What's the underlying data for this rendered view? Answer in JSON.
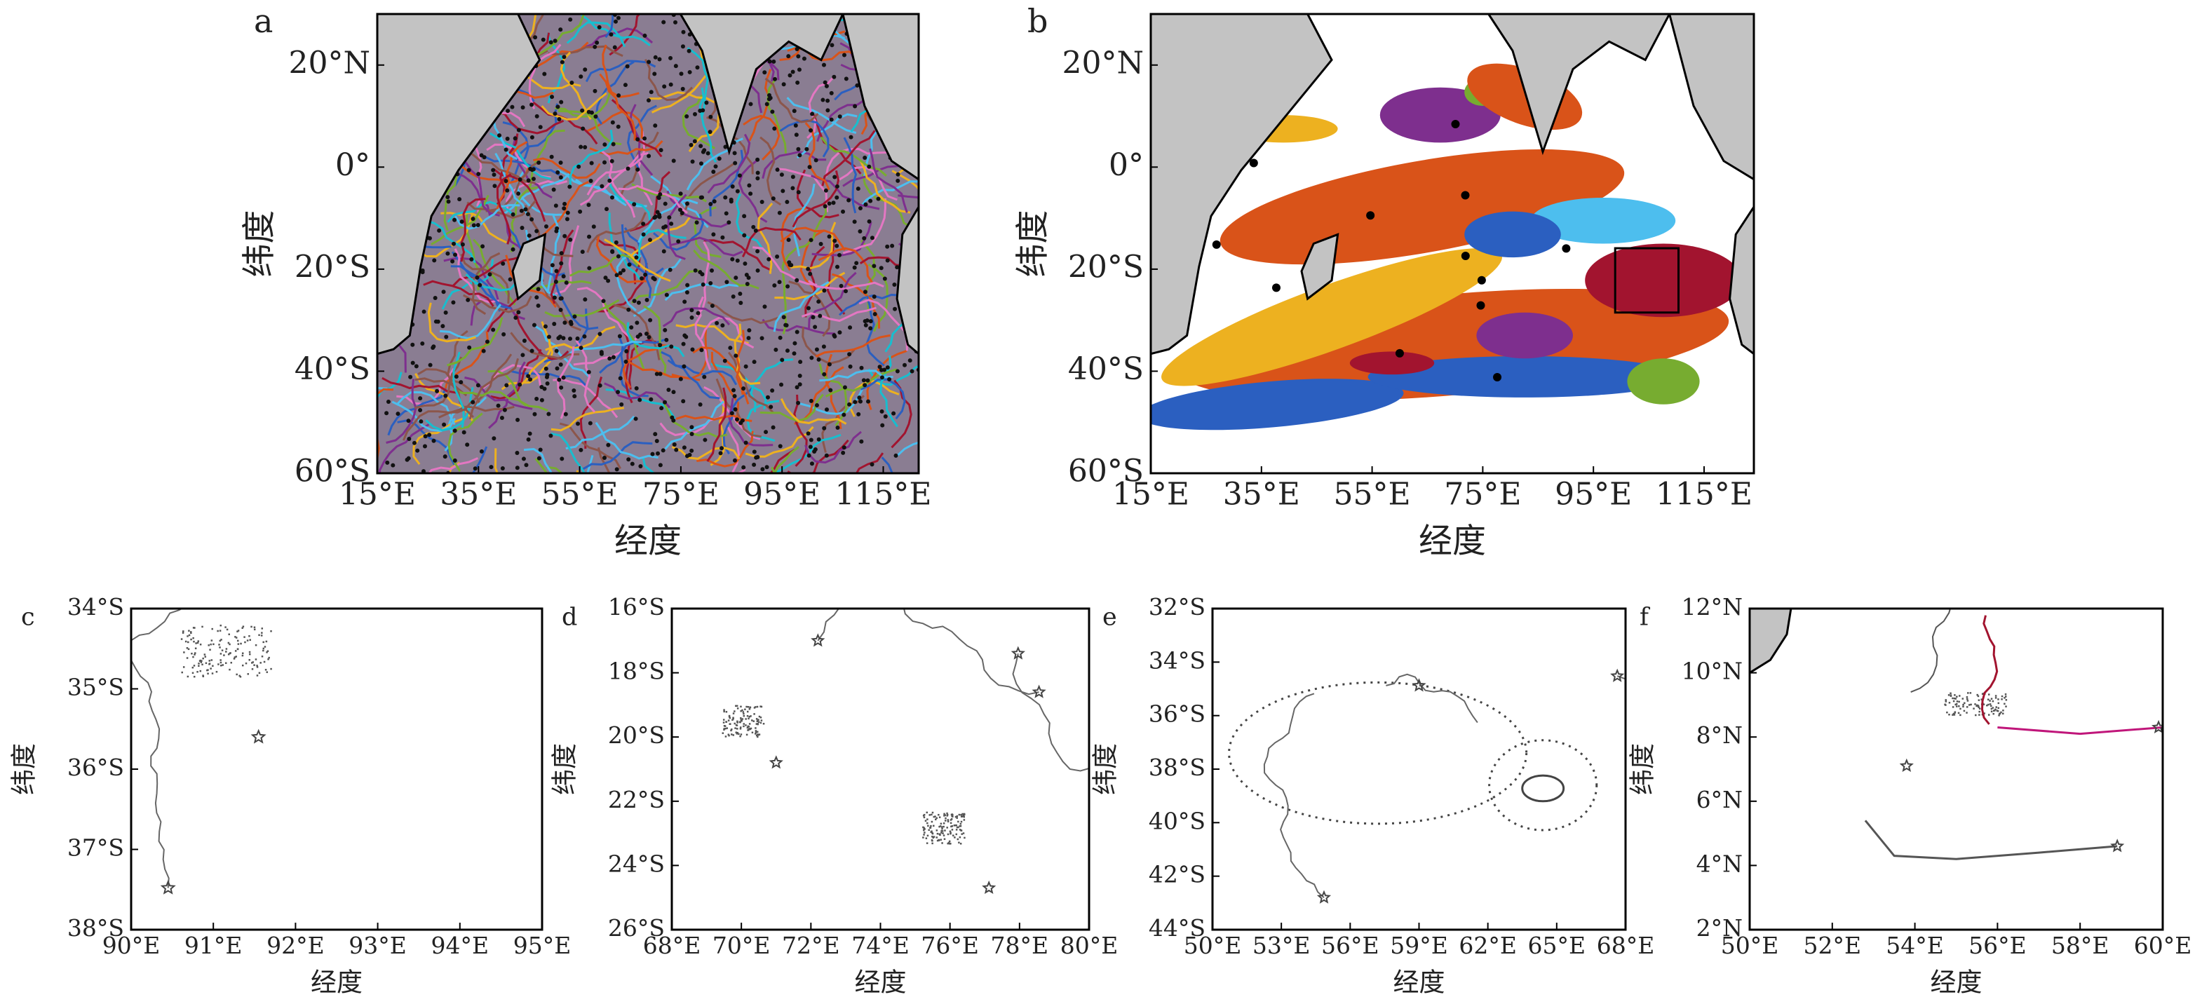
{
  "chart_data": [
    {
      "type": "map",
      "label": "a",
      "xlabel": "经度",
      "ylabel": "纬度",
      "style": "tracks",
      "xlim": [
        15,
        122
      ],
      "ylim": [
        -60,
        30
      ],
      "xticks": [
        {
          "value": 15,
          "label": "15°E"
        },
        {
          "value": 35,
          "label": "35°E"
        },
        {
          "value": 55,
          "label": "55°E"
        },
        {
          "value": 75,
          "label": "75°E"
        },
        {
          "value": 95,
          "label": "95°E"
        },
        {
          "value": 115,
          "label": "115°E"
        }
      ],
      "yticks": [
        {
          "value": 20,
          "label": "20°N"
        },
        {
          "value": 0,
          "label": "0°"
        },
        {
          "value": -20,
          "label": "20°S"
        },
        {
          "value": -40,
          "label": "40°S"
        },
        {
          "value": -60,
          "label": "60°S"
        }
      ]
    },
    {
      "type": "map",
      "label": "b",
      "xlabel": "经度",
      "ylabel": "纬度",
      "style": "regions",
      "xlim": [
        15,
        124
      ],
      "ylim": [
        -60,
        30
      ],
      "xticks": [
        {
          "value": 15,
          "label": "15°E"
        },
        {
          "value": 35,
          "label": "35°E"
        },
        {
          "value": 55,
          "label": "55°E"
        },
        {
          "value": 75,
          "label": "75°E"
        },
        {
          "value": 95,
          "label": "95°E"
        },
        {
          "value": 115,
          "label": "115°E"
        }
      ],
      "yticks": [
        {
          "value": 20,
          "label": "20°N"
        },
        {
          "value": 0,
          "label": "0°"
        },
        {
          "value": -20,
          "label": "20°S"
        },
        {
          "value": -40,
          "label": "40°S"
        },
        {
          "value": -60,
          "label": "60°S"
        }
      ]
    },
    {
      "type": "map",
      "label": "c",
      "xlabel": "经度",
      "ylabel": "纬度",
      "style": "single",
      "xlim": [
        90,
        95
      ],
      "ylim": [
        -38,
        -34
      ],
      "xticks": [
        {
          "value": 90,
          "label": "90°E"
        },
        {
          "value": 91,
          "label": "91°E"
        },
        {
          "value": 92,
          "label": "92°E"
        },
        {
          "value": 93,
          "label": "93°E"
        },
        {
          "value": 94,
          "label": "94°E"
        },
        {
          "value": 95,
          "label": "95°E"
        }
      ],
      "yticks": [
        {
          "value": -34,
          "label": "34°S"
        },
        {
          "value": -35,
          "label": "35°S"
        },
        {
          "value": -36,
          "label": "36°S"
        },
        {
          "value": -37,
          "label": "37°S"
        },
        {
          "value": -38,
          "label": "38°S"
        }
      ]
    },
    {
      "type": "map",
      "label": "d",
      "xlabel": "经度",
      "ylabel": "纬度",
      "style": "multi",
      "xlim": [
        68,
        80
      ],
      "ylim": [
        -26,
        -16
      ],
      "xticks": [
        {
          "value": 68,
          "label": "68°E"
        },
        {
          "value": 70,
          "label": "70°E"
        },
        {
          "value": 72,
          "label": "72°E"
        },
        {
          "value": 74,
          "label": "74°E"
        },
        {
          "value": 76,
          "label": "76°E"
        },
        {
          "value": 78,
          "label": "78°E"
        },
        {
          "value": 80,
          "label": "80°E"
        }
      ],
      "yticks": [
        {
          "value": -16,
          "label": "16°S"
        },
        {
          "value": -18,
          "label": "18°S"
        },
        {
          "value": -20,
          "label": "20°S"
        },
        {
          "value": -22,
          "label": "22°S"
        },
        {
          "value": -24,
          "label": "24°S"
        },
        {
          "value": -26,
          "label": "26°S"
        }
      ]
    },
    {
      "type": "map",
      "label": "e",
      "xlabel": "经度",
      "ylabel": "纬度",
      "style": "loops",
      "xlim": [
        50,
        68
      ],
      "ylim": [
        -44,
        -32
      ],
      "xticks": [
        {
          "value": 50,
          "label": "50°E"
        },
        {
          "value": 53,
          "label": "53°E"
        },
        {
          "value": 56,
          "label": "56°E"
        },
        {
          "value": 59,
          "label": "59°E"
        },
        {
          "value": 62,
          "label": "62°E"
        },
        {
          "value": 65,
          "label": "65°E"
        },
        {
          "value": 68,
          "label": "68°E"
        }
      ],
      "yticks": [
        {
          "value": -32,
          "label": "32°S"
        },
        {
          "value": -34,
          "label": "34°S"
        },
        {
          "value": -36,
          "label": "36°S"
        },
        {
          "value": -38,
          "label": "38°S"
        },
        {
          "value": -40,
          "label": "40°S"
        },
        {
          "value": -42,
          "label": "42°S"
        },
        {
          "value": -44,
          "label": "44°S"
        }
      ]
    },
    {
      "type": "map",
      "label": "f",
      "xlabel": "经度",
      "ylabel": "纬度",
      "style": "coast",
      "xlim": [
        50,
        60
      ],
      "ylim": [
        2,
        12
      ],
      "xticks": [
        {
          "value": 50,
          "label": "50°E"
        },
        {
          "value": 52,
          "label": "52°E"
        },
        {
          "value": 54,
          "label": "54°E"
        },
        {
          "value": 56,
          "label": "56°E"
        },
        {
          "value": 58,
          "label": "58°E"
        },
        {
          "value": 60,
          "label": "60°E"
        }
      ],
      "yticks": [
        {
          "value": 2,
          "label": "2°N"
        },
        {
          "value": 4,
          "label": "4°N"
        },
        {
          "value": 6,
          "label": "6°N"
        },
        {
          "value": 8,
          "label": "8°N"
        },
        {
          "value": 10,
          "label": "10°N"
        },
        {
          "value": 12,
          "label": "12°N"
        }
      ]
    }
  ]
}
